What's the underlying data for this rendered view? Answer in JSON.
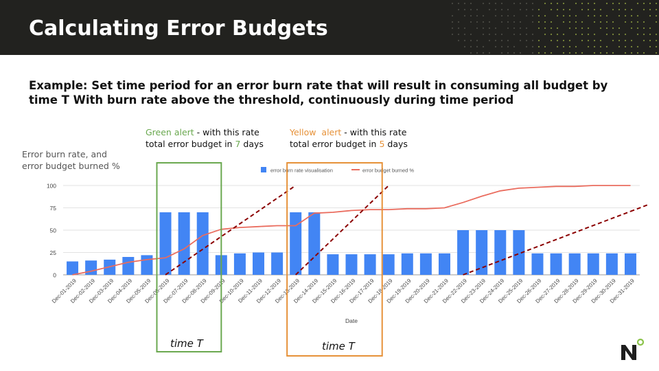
{
  "slide": {
    "title": "Calculating Error Budgets",
    "subtitle_line1": "Example: Set time period for an error burn rate that will result in consuming all budget by",
    "subtitle_line2": "time T With burn rate above the threshold, continuously during time period",
    "ylabel_line1": "Error burn rate, and",
    "ylabel_line2": "error budget burned %",
    "green_alert": {
      "label": "Green alert",
      "text1": " - with this rate",
      "text2_pre": "total error budget in ",
      "days": "7",
      "text2_post": " days",
      "color": "#6aa84f"
    },
    "yellow_alert": {
      "label": "Yellow  alert",
      "text1": " - with this rate",
      "text2_pre": "total error budget in ",
      "days": "5",
      "text2_post": " days",
      "color": "#e69138"
    },
    "time_label_green": "time T",
    "time_label_yellow": "time T",
    "header_color": "#22221f"
  },
  "chart_data": {
    "type": "bar",
    "categories": [
      "Dec-01-2019",
      "Dec-02-2019",
      "Dec-03-2019",
      "Dec-04-2019",
      "Dec-05-2019",
      "Dec-06-2019",
      "Dec-07-2019",
      "Dec-08-2019",
      "Dec-09-2019",
      "Dec-10-2019",
      "Dec-11-2019",
      "Dec-12-2019",
      "Dec-13-2019",
      "Dec-14-2019",
      "Dec-15-2019",
      "Dec-16-2019",
      "Dec-17-2019",
      "Dec-18-2019",
      "Dec-19-2019",
      "Dec-20-2019",
      "Dec-21-2019",
      "Dec-22-2019",
      "Dec-23-2019",
      "Dec-24-2019",
      "Dec-25-2019",
      "Dec-26-2019",
      "Dec-27-2019",
      "Dec-28-2019",
      "Dec-29-2019",
      "Dec-30-2019",
      "Dec-31-2019"
    ],
    "series": [
      {
        "name": "error burn rate visualisation",
        "type": "bar",
        "color": "#4285f4",
        "values": [
          15,
          16,
          17,
          20,
          22,
          70,
          70,
          70,
          22,
          24,
          25,
          25,
          70,
          70,
          23,
          23,
          23,
          23,
          24,
          24,
          24,
          50,
          50,
          50,
          50,
          24,
          24,
          24,
          24,
          24,
          24
        ]
      },
      {
        "name": "error budget burned %",
        "type": "line",
        "color": "#ea6c5e",
        "values": [
          0,
          4,
          9,
          14,
          17,
          19,
          29,
          44,
          51,
          53,
          54,
          55,
          55,
          69,
          70,
          72,
          73,
          73,
          74,
          74,
          75,
          81,
          88,
          94,
          97,
          98,
          99,
          99,
          100,
          100,
          100
        ]
      }
    ],
    "xlabel": "Date",
    "ylabel": "",
    "ylim": [
      0,
      100
    ],
    "yticks": [
      0,
      25,
      50,
      75,
      100
    ],
    "grid": true,
    "legend": "top-center",
    "threshold_lines": [
      {
        "from": [
          "Dec-06-2019",
          0
        ],
        "to": [
          "Dec-13-2019",
          100
        ],
        "color": "#8b0000",
        "style": "dashed"
      },
      {
        "from": [
          "Dec-13-2019",
          0
        ],
        "to": [
          "Dec-18-2019",
          100
        ],
        "color": "#8b0000",
        "style": "dashed"
      },
      {
        "from": [
          "Dec-22-2019",
          0
        ],
        "to": [
          "Dec-31-2019",
          71
        ],
        "color": "#8b0000",
        "style": "dashed"
      }
    ],
    "highlight_boxes": [
      {
        "from": "Dec-06-2019",
        "to": "Dec-09-2019",
        "color": "#6aa84f"
      },
      {
        "from": "Dec-13-2019",
        "to": "Dec-18-2019",
        "color": "#e69138"
      }
    ]
  }
}
